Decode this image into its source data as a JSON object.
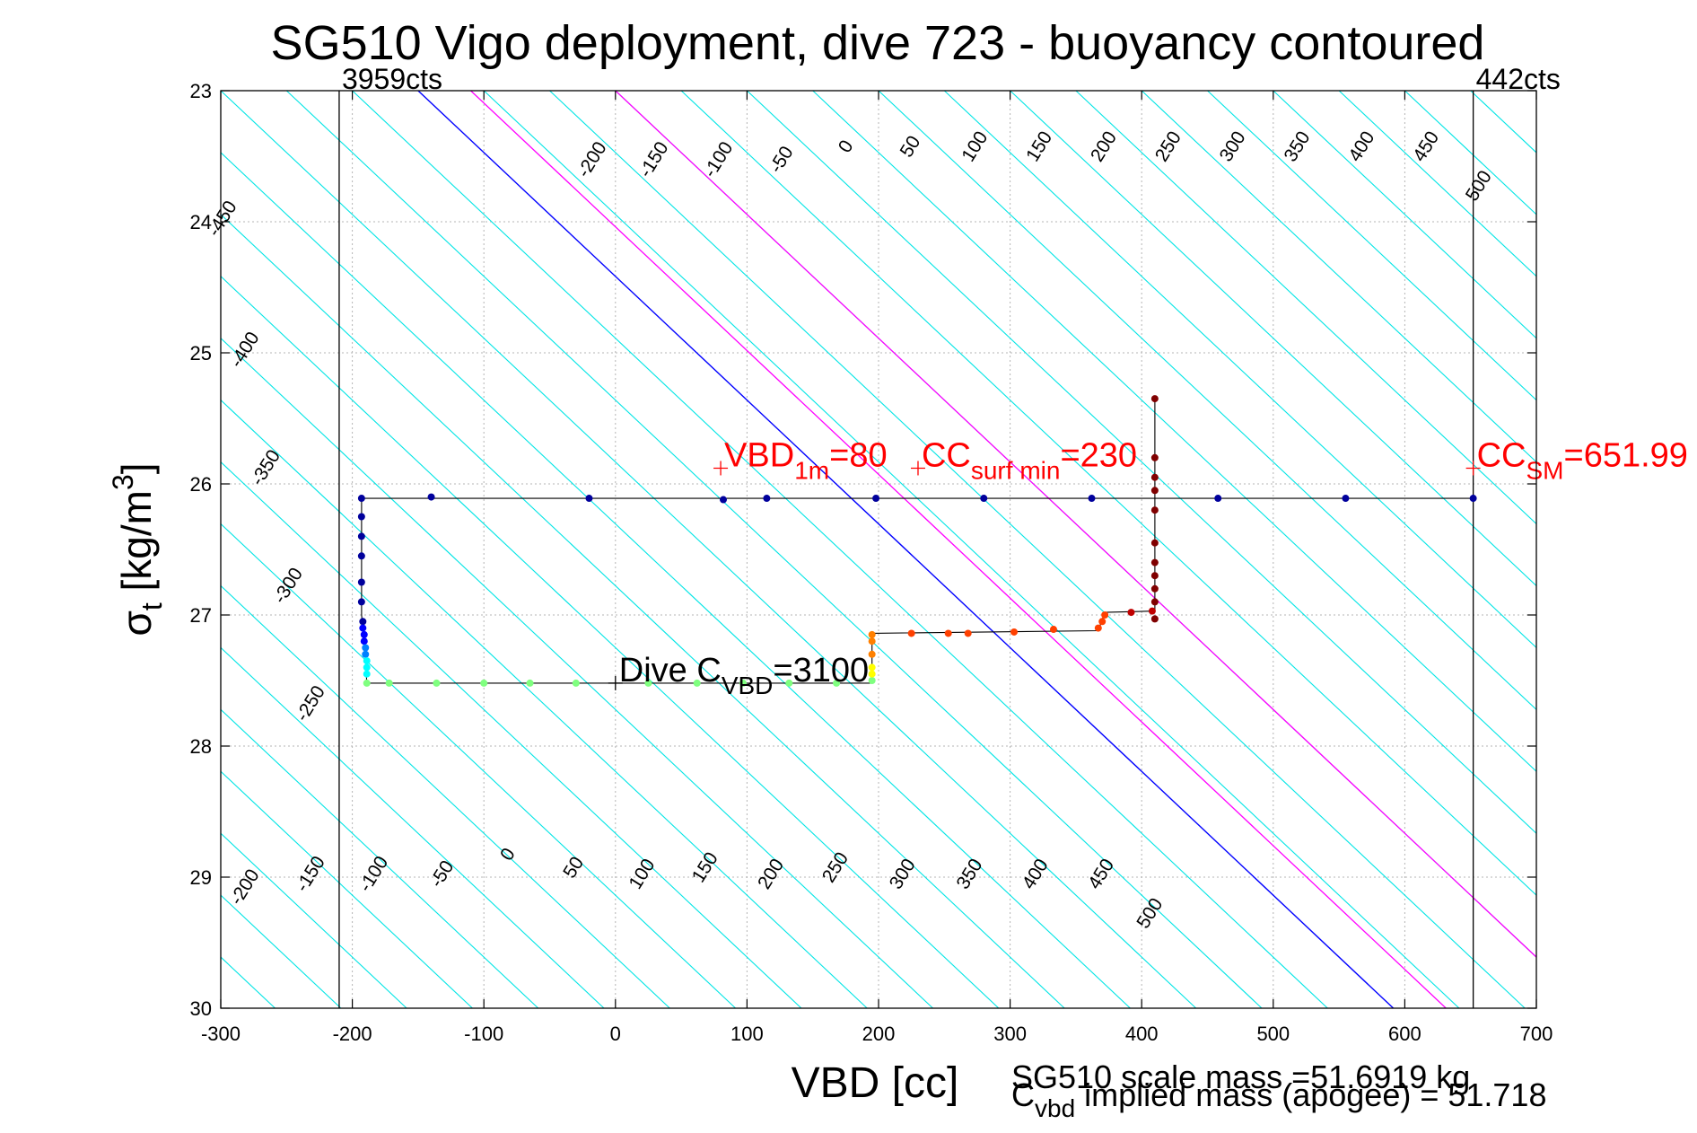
{
  "chart_data": {
    "type": "scatter",
    "title": "SG510 Vigo deployment, dive 723 - buoyancy contoured",
    "xlabel": "VBD [cc]",
    "ylabel": "σt [kg/m3]",
    "ylabel_parts": {
      "sigma": "σ",
      "sub": "t",
      "unit_open": " [kg/m",
      "sup": "3",
      "unit_close": "]"
    },
    "xlim": [
      -300,
      700
    ],
    "ylim": [
      23,
      30
    ],
    "y_reversed": true,
    "grid": true,
    "x_ticks": [
      "-300",
      "-200",
      "-100",
      "0",
      "100",
      "200",
      "300",
      "400",
      "500",
      "600",
      "700"
    ],
    "y_ticks": [
      "23",
      "24",
      "25",
      "26",
      "27",
      "28",
      "29",
      "30"
    ],
    "colors": {
      "contour": "#00e5e5",
      "zero_contour": "#0000ff",
      "highlight_contour": "#ff00ff",
      "annotation": "#ff0000",
      "axis": "#000000",
      "grid": "#b5b5b5"
    },
    "vertical_lines": [
      {
        "x": -210,
        "label": "3959cts"
      },
      {
        "x": 652,
        "label": "442cts"
      }
    ],
    "buoyancy_contours": [
      -450,
      -400,
      -350,
      -300,
      -250,
      -200,
      -150,
      -100,
      -50,
      0,
      50,
      100,
      150,
      200,
      250,
      300,
      350,
      400,
      450,
      500
    ],
    "highlight_contours": [
      120,
      230
    ],
    "contour_labels_top": [
      "-450",
      "-400",
      "-350",
      "-300",
      "-250",
      "-200",
      "-150",
      "-100",
      "-50",
      "0",
      "50",
      "100",
      "150",
      "200",
      "250",
      "300",
      "350",
      "400",
      "450",
      "500"
    ],
    "contour_labels_bottom": [
      "-200",
      "-150",
      "-100",
      "-50",
      "0",
      "50",
      "100",
      "150",
      "200",
      "250",
      "300",
      "350",
      "400",
      "450",
      "500"
    ],
    "annotations": [
      {
        "x": 80,
        "y": 25.88,
        "base": "VBD",
        "sub": "1m",
        "rest": "=80",
        "color": "#ff0000"
      },
      {
        "x": 230,
        "y": 25.88,
        "base": "CC",
        "sub": "surf min",
        "rest": "=230",
        "color": "#ff0000"
      },
      {
        "x": 651.99,
        "y": 25.88,
        "base": "CC",
        "sub": "SM",
        "rest": "=651.99",
        "color": "#ff0000"
      },
      {
        "x": 0,
        "y": 27.52,
        "base": "Dive C",
        "sub": "VBD",
        "rest": "=3100",
        "color": "#000000"
      }
    ],
    "footer_lines": [
      "SG510 scale mass =51.6919 kg",
      {
        "base": "C",
        "sub": "vbd",
        "rest": " implied mass (apogee) = 51.718"
      }
    ],
    "trace": [
      [
        -193,
        26.11
      ],
      [
        -140,
        26.1
      ],
      [
        -20,
        26.11
      ],
      [
        82,
        26.12
      ],
      [
        115,
        26.11
      ],
      [
        198,
        26.11
      ],
      [
        280,
        26.11
      ],
      [
        362,
        26.11
      ],
      [
        410,
        26.11
      ],
      [
        458,
        26.11
      ],
      [
        555,
        26.11
      ],
      [
        652,
        26.11
      ]
    ],
    "series": [
      {
        "name": "",
        "color": "#00009c",
        "points": [
          [
            -193,
            26.11
          ],
          [
            -140,
            26.1
          ],
          [
            -20,
            26.11
          ],
          [
            82,
            26.12
          ],
          [
            115,
            26.11
          ],
          [
            198,
            26.11
          ],
          [
            280,
            26.11
          ],
          [
            362,
            26.11
          ],
          [
            458,
            26.11
          ],
          [
            555,
            26.11
          ],
          [
            652,
            26.11
          ],
          [
            -193,
            26.25
          ],
          [
            -193,
            26.4
          ],
          [
            -193,
            26.55
          ],
          [
            -193,
            26.75
          ],
          [
            -193,
            26.9
          ],
          [
            -192,
            27.05
          ]
        ]
      },
      {
        "name": "",
        "color": "#0000ff",
        "points": [
          [
            -192,
            27.1
          ],
          [
            -191,
            27.15
          ],
          [
            -191,
            27.2
          ]
        ]
      },
      {
        "name": "",
        "color": "#0080ff",
        "points": [
          [
            -190,
            27.25
          ],
          [
            -190,
            27.3
          ]
        ]
      },
      {
        "name": "",
        "color": "#00ffff",
        "points": [
          [
            -189,
            27.35
          ],
          [
            -189,
            27.4
          ],
          [
            -189,
            27.45
          ]
        ]
      },
      {
        "name": "",
        "color": "#7fff7f",
        "points": [
          [
            -189,
            27.52
          ],
          [
            -172,
            27.52
          ],
          [
            -136,
            27.52
          ],
          [
            -100,
            27.52
          ],
          [
            -65,
            27.52
          ],
          [
            -30,
            27.52
          ],
          [
            25,
            27.52
          ],
          [
            62,
            27.52
          ],
          [
            97,
            27.52
          ],
          [
            132,
            27.52
          ],
          [
            168,
            27.52
          ],
          [
            195,
            27.5
          ]
        ]
      },
      {
        "name": "",
        "color": "#ffff00",
        "points": [
          [
            195,
            27.45
          ],
          [
            195,
            27.4
          ]
        ]
      },
      {
        "name": "",
        "color": "#ff8000",
        "points": [
          [
            195,
            27.3
          ],
          [
            195,
            27.2
          ],
          [
            195,
            27.15
          ]
        ]
      },
      {
        "name": "",
        "color": "#ff4000",
        "points": [
          [
            225,
            27.14
          ],
          [
            253,
            27.14
          ],
          [
            268,
            27.14
          ],
          [
            303,
            27.13
          ],
          [
            333,
            27.11
          ],
          [
            367,
            27.1
          ],
          [
            370,
            27.05
          ],
          [
            372,
            27.0
          ]
        ]
      },
      {
        "name": "",
        "color": "#c00000",
        "points": [
          [
            392,
            26.98
          ],
          [
            408,
            26.97
          ]
        ]
      },
      {
        "name": "",
        "color": "#800000",
        "points": [
          [
            410,
            27.03
          ],
          [
            410,
            26.9
          ],
          [
            410,
            26.8
          ],
          [
            410,
            26.7
          ],
          [
            410,
            26.6
          ],
          [
            410,
            26.45
          ],
          [
            410,
            26.2
          ],
          [
            410,
            26.05
          ],
          [
            410,
            25.95
          ],
          [
            410,
            25.8
          ],
          [
            410,
            25.35
          ]
        ]
      }
    ]
  }
}
